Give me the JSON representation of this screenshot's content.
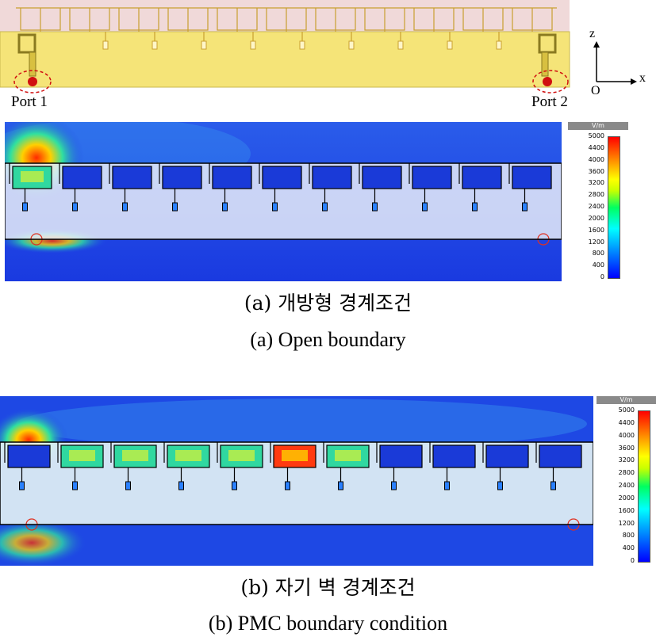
{
  "geometry": {
    "port1_label": "Port 1",
    "port2_label": "Port 2",
    "axes": {
      "z": "z",
      "x": "x",
      "origin": "O"
    }
  },
  "panel_a": {
    "unit": "V/m",
    "ticks": [
      "5000",
      "4400",
      "4000",
      "3600",
      "3200",
      "2800",
      "2400",
      "2000",
      "1600",
      "1200",
      "800",
      "400",
      "0"
    ],
    "caption_korean": "(a) 개방형 경계조건",
    "caption_english": "(a) Open boundary"
  },
  "panel_b": {
    "unit": "V/m",
    "ticks": [
      "5000",
      "4400",
      "4000",
      "3600",
      "3200",
      "2800",
      "2400",
      "2000",
      "1600",
      "1200",
      "800",
      "400",
      "0"
    ],
    "caption_korean": "(b) 자기 벽 경계조건",
    "caption_english": "(b) PMC boundary condition"
  },
  "colors": {
    "substrate": "#f5e478",
    "substrate_top": "#f2d6d6",
    "field_low": "#1e44e6",
    "field_hot": "#ff2a00"
  }
}
